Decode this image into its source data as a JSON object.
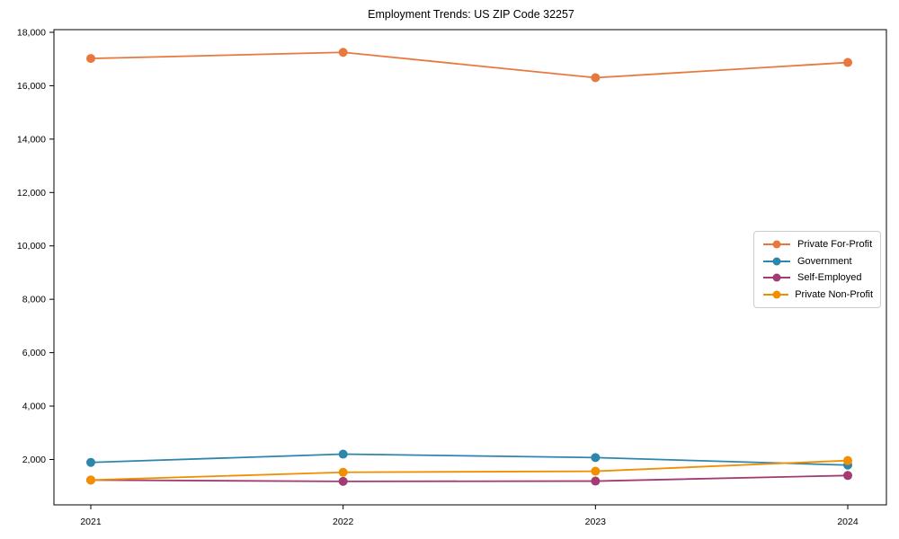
{
  "title": "Employment Trends: US ZIP Code 32257",
  "chart_data": {
    "type": "line",
    "title": "Employment Trends: US ZIP Code 32257",
    "xlabel": "",
    "ylabel": "",
    "categories": [
      "2021",
      "2022",
      "2023",
      "2024"
    ],
    "series": [
      {
        "name": "Private For-Profit",
        "color": "#e8793e",
        "values": [
          17020,
          17250,
          16300,
          16870
        ]
      },
      {
        "name": "Government",
        "color": "#2e86ab",
        "values": [
          1890,
          2200,
          2070,
          1790
        ]
      },
      {
        "name": "Self-Employed",
        "color": "#a23b72",
        "values": [
          1230,
          1180,
          1190,
          1400
        ]
      },
      {
        "name": "Private Non-Profit",
        "color": "#f18f01",
        "values": [
          1230,
          1520,
          1560,
          1960
        ]
      }
    ],
    "ylim": [
      300,
      18100
    ],
    "yticks": [
      2000,
      4000,
      6000,
      8000,
      10000,
      12000,
      14000,
      16000,
      18000
    ],
    "ytick_labels": [
      "2,000",
      "4,000",
      "6,000",
      "8,000",
      "10,000",
      "12,000",
      "14,000",
      "16,000",
      "18,000"
    ],
    "grid": false,
    "marker": "circle",
    "legend_position": "center right"
  }
}
